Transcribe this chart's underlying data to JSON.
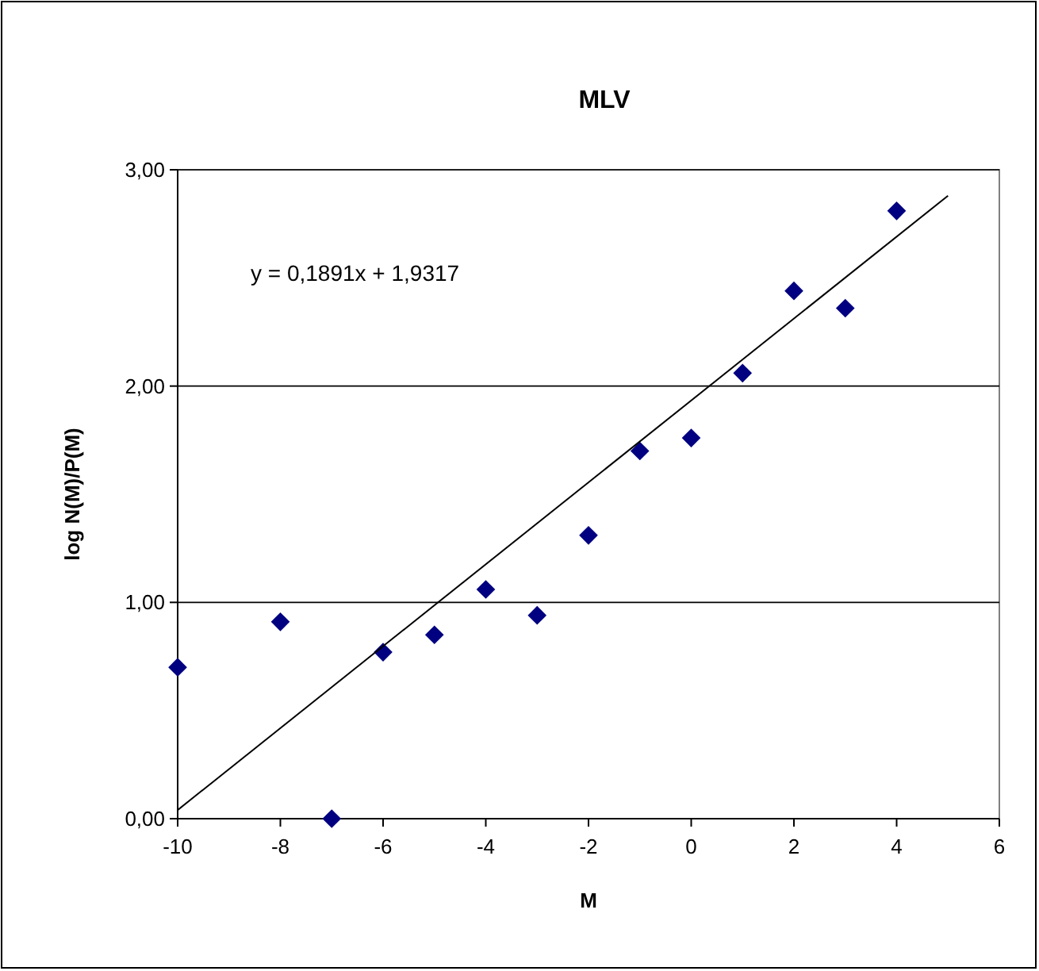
{
  "chart_data": {
    "type": "scatter",
    "title": "MLV",
    "xlabel": "M",
    "ylabel": "log N(M)/P(M)",
    "xlim": [
      -10,
      6
    ],
    "xticks": [
      -10,
      -8,
      -6,
      -4,
      -2,
      0,
      2,
      4,
      6
    ],
    "ylim": [
      0,
      3
    ],
    "yticks": [
      {
        "value": 0,
        "label": "0,00"
      },
      {
        "value": 1,
        "label": "1,00"
      },
      {
        "value": 2,
        "label": "2,00"
      },
      {
        "value": 3,
        "label": "3,00"
      }
    ],
    "grid": "y",
    "annotations": [
      "y = 0,1891x + 1,9317"
    ],
    "series": [
      {
        "color": "#000080",
        "marker": "diamond",
        "x": [
          -10,
          -8,
          -7,
          -6,
          -5,
          -4,
          -3,
          -2,
          -1,
          0,
          1,
          2,
          3,
          4
        ],
        "values": [
          0.7,
          0.91,
          0.0,
          0.77,
          0.85,
          1.06,
          0.94,
          1.31,
          1.7,
          1.76,
          2.06,
          2.44,
          2.36,
          2.81
        ]
      },
      {
        "type": "line",
        "color": "#000000",
        "x": [
          -10,
          5
        ],
        "values": [
          0.04,
          2.88
        ]
      }
    ]
  }
}
